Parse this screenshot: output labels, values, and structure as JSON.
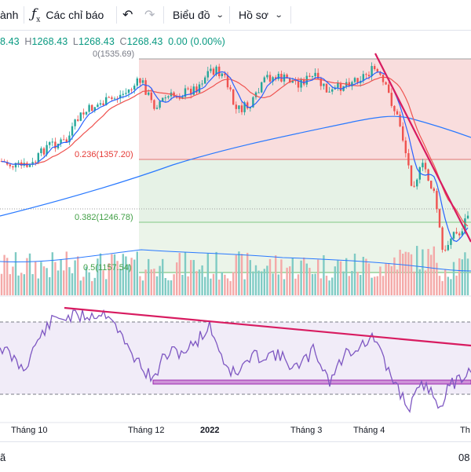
{
  "toolbar": {
    "partial_label": "ành",
    "indicators_label": "Các chỉ báo",
    "chart_label": "Biểu đồ",
    "profile_label": "Hồ sơ"
  },
  "ohlc": {
    "open_partial": "8.43",
    "high_key": "H",
    "high": "1268.43",
    "low_key": "L",
    "low": "1268.43",
    "close_key": "C",
    "close": "1268.43",
    "change": "0.00 (0.00%)"
  },
  "fib": {
    "level_0": "0(1535.69)",
    "level_236": "0.236(1357.20)",
    "level_382": "0.382(1246.78)",
    "level_5": "0.5(1157.54)"
  },
  "time_axis": [
    "Tháng 10",
    "Tháng 12",
    "2022",
    "Tháng 3",
    "Tháng 4",
    "Th"
  ],
  "footer": {
    "left_partial": "ã",
    "right_partial": "08"
  },
  "colors": {
    "up": "#26a69a",
    "down": "#ef5350",
    "ma_fast": "#2962ff",
    "ma_slow": "#ef5350",
    "ma_long": "#2979ff",
    "trendline": "#d81b60",
    "rsi": "#7e57c2"
  },
  "chart_data": {
    "type": "candlestick",
    "series_name": "",
    "x": [
      "Tháng 10",
      "Tháng 12",
      "2022",
      "Tháng 3",
      "Tháng 4"
    ],
    "fib_levels": [
      {
        "ratio": 0,
        "price": 1535.69
      },
      {
        "ratio": 0.236,
        "price": 1357.2
      },
      {
        "ratio": 0.382,
        "price": 1246.78
      },
      {
        "ratio": 0.5,
        "price": 1157.54
      }
    ],
    "last_close": 1268.43,
    "ylim": [
      1130,
      1560
    ],
    "rsi_ylim": [
      30,
      70
    ],
    "indicators": [
      "MA fast",
      "MA slow",
      "MA long",
      "Volume",
      "RSI"
    ]
  }
}
